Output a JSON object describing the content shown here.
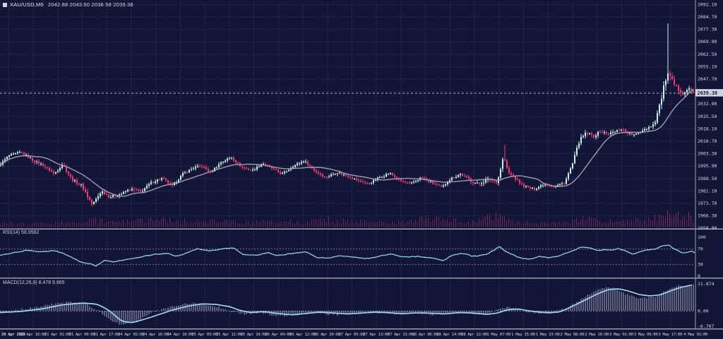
{
  "window": {
    "icon": "■",
    "symbol_period": "XAU/USD,M5",
    "ohlc": "2042.88 2043.50 2036.58 2039.38"
  },
  "colors": {
    "bg": "#131537",
    "grid": "#3b3f72",
    "bull": "#c9f4ee",
    "bear": "#ee3d77",
    "volume": "#8e2f63",
    "ma": "#a59bb0",
    "rsi_line": "#8ed2e6",
    "macd_signal": "#9fdef0",
    "macd_hist": "#c3c6e0",
    "separator": "#9a9dae",
    "axis_text": "#d5d7e6",
    "badge_bg": "#cfd2de",
    "badge_text": "#16183c",
    "price_line": "#aeb2c4",
    "level_dash": "#6a6e96"
  },
  "chart_data": {
    "type": "candlestick",
    "title": "XAU/USD,M5",
    "current_bar": {
      "open": 2042.88,
      "high": 2043.5,
      "low": 2036.58,
      "close": 2039.38
    },
    "current_price": "2039.38",
    "y_axis": {
      "top_value": 2092.1,
      "step": 7.4,
      "ticks": [
        "2092.10",
        "2084.70",
        "2077.30",
        "2069.90",
        "2062.50",
        "2055.10",
        "2047.70",
        "2040.30",
        "2032.90",
        "2025.50",
        "2018.10",
        "2010.70",
        "2003.30",
        "1995.90",
        "1988.50",
        "1981.10",
        "1973.70",
        "1966.30",
        "1958.90"
      ]
    },
    "x_axis": {
      "labels": [
        "20 Apr 2023",
        "20 Apr 16:00",
        "21 Apr 01:00",
        "21 Apr 09:00",
        "21 Apr 17:00",
        "24 Apr 02:00",
        "24 Apr 10:00",
        "24 Apr 18:00",
        "25 Apr 03:00",
        "25 Apr 11:00",
        "25 Apr 19:00",
        "26 Apr 04:00",
        "26 Apr 12:00",
        "26 Apr 20:00",
        "27 Apr 05:00",
        "27 Apr 13:00",
        "27 Apr 21:00",
        "28 Apr 06:00",
        "28 Apr 14:00",
        "28 Apr 22:00",
        "1 May 07:00",
        "1 May 15:00",
        "1 May 23:00",
        "2 May 08:00",
        "2 May 16:00",
        "3 May 01:00",
        "3 May 09:00",
        "3 May 17:00",
        "4 May 02:00"
      ]
    },
    "price_path": [
      [
        0,
        1996
      ],
      [
        0.015,
        2002
      ],
      [
        0.033,
        2004
      ],
      [
        0.05,
        1999
      ],
      [
        0.065,
        1996
      ],
      [
        0.08,
        1991
      ],
      [
        0.092,
        1997
      ],
      [
        0.105,
        1988
      ],
      [
        0.12,
        1984
      ],
      [
        0.135,
        1972.5
      ],
      [
        0.148,
        1981
      ],
      [
        0.16,
        1977.5
      ],
      [
        0.175,
        1979
      ],
      [
        0.19,
        1982
      ],
      [
        0.205,
        1980.5
      ],
      [
        0.22,
        1986
      ],
      [
        0.235,
        1988.5
      ],
      [
        0.25,
        1984
      ],
      [
        0.265,
        1991
      ],
      [
        0.28,
        1994.5
      ],
      [
        0.292,
        1996
      ],
      [
        0.305,
        1992
      ],
      [
        0.32,
        1998
      ],
      [
        0.335,
        2001
      ],
      [
        0.35,
        1995
      ],
      [
        0.365,
        1993
      ],
      [
        0.38,
        1997.5
      ],
      [
        0.395,
        1994
      ],
      [
        0.408,
        1991
      ],
      [
        0.425,
        1996
      ],
      [
        0.44,
        1999
      ],
      [
        0.455,
        1993
      ],
      [
        0.47,
        1989
      ],
      [
        0.487,
        1992
      ],
      [
        0.502,
        1990
      ],
      [
        0.518,
        1987
      ],
      [
        0.532,
        1985
      ],
      [
        0.548,
        1989
      ],
      [
        0.563,
        1991.5
      ],
      [
        0.578,
        1987
      ],
      [
        0.593,
        1985
      ],
      [
        0.608,
        1989
      ],
      [
        0.623,
        1986
      ],
      [
        0.638,
        1983
      ],
      [
        0.65,
        1988
      ],
      [
        0.665,
        1991
      ],
      [
        0.68,
        1987
      ],
      [
        0.69,
        1985
      ],
      [
        0.705,
        1988
      ],
      [
        0.718,
        1986.5
      ],
      [
        0.727,
        2002
      ],
      [
        0.733,
        1992
      ],
      [
        0.742,
        1989
      ],
      [
        0.755,
        1984
      ],
      [
        0.77,
        1982
      ],
      [
        0.785,
        1985
      ],
      [
        0.8,
        1983.5
      ],
      [
        0.815,
        1986
      ],
      [
        0.826,
        1997
      ],
      [
        0.836,
        2011
      ],
      [
        0.846,
        2015.5
      ],
      [
        0.856,
        2013.5
      ],
      [
        0.866,
        2016.5
      ],
      [
        0.876,
        2015
      ],
      [
        0.886,
        2016
      ],
      [
        0.896,
        2018
      ],
      [
        0.906,
        2015.5
      ],
      [
        0.916,
        2014
      ],
      [
        0.926,
        2017
      ],
      [
        0.936,
        2019
      ],
      [
        0.944,
        2021
      ],
      [
        0.954,
        2036
      ],
      [
        0.962,
        2051
      ],
      [
        0.968,
        2047
      ],
      [
        0.974,
        2043
      ],
      [
        0.98,
        2041
      ],
      [
        0.986,
        2039
      ],
      [
        0.993,
        2042
      ],
      [
        1,
        2039.4
      ]
    ],
    "volatility": [
      [
        0,
        1.2
      ],
      [
        0.1,
        1.4
      ],
      [
        0.13,
        2.2
      ],
      [
        0.16,
        1.4
      ],
      [
        0.3,
        1.2
      ],
      [
        0.5,
        1.1
      ],
      [
        0.65,
        1.2
      ],
      [
        0.72,
        2.0
      ],
      [
        0.74,
        1.2
      ],
      [
        0.8,
        1.0
      ],
      [
        0.83,
        2.0
      ],
      [
        0.87,
        1.4
      ],
      [
        0.94,
        1.6
      ],
      [
        0.955,
        3.5
      ],
      [
        0.965,
        3.5
      ],
      [
        0.98,
        2.0
      ],
      [
        1,
        1.8
      ]
    ],
    "spikes": [
      {
        "frac": 0.961,
        "high": 2080.8
      },
      {
        "frac": 0.727,
        "high": 2008.5
      }
    ],
    "volume_envelope": [
      [
        0,
        0.25
      ],
      [
        0.05,
        0.2
      ],
      [
        0.1,
        0.35
      ],
      [
        0.135,
        0.55
      ],
      [
        0.16,
        0.3
      ],
      [
        0.2,
        0.45
      ],
      [
        0.24,
        0.5
      ],
      [
        0.28,
        0.4
      ],
      [
        0.32,
        0.35
      ],
      [
        0.36,
        0.3
      ],
      [
        0.4,
        0.35
      ],
      [
        0.44,
        0.3
      ],
      [
        0.47,
        0.55
      ],
      [
        0.5,
        0.4
      ],
      [
        0.53,
        0.35
      ],
      [
        0.57,
        0.3
      ],
      [
        0.6,
        0.5
      ],
      [
        0.63,
        0.6
      ],
      [
        0.65,
        0.45
      ],
      [
        0.68,
        0.35
      ],
      [
        0.7,
        0.6
      ],
      [
        0.72,
        0.7
      ],
      [
        0.74,
        0.4
      ],
      [
        0.77,
        0.3
      ],
      [
        0.8,
        0.25
      ],
      [
        0.82,
        0.4
      ],
      [
        0.84,
        0.6
      ],
      [
        0.86,
        0.45
      ],
      [
        0.88,
        0.35
      ],
      [
        0.9,
        0.4
      ],
      [
        0.92,
        0.45
      ],
      [
        0.94,
        0.6
      ],
      [
        0.955,
        0.9
      ],
      [
        0.965,
        1.0
      ],
      [
        0.975,
        0.7
      ],
      [
        0.985,
        0.8
      ],
      [
        1,
        0.6
      ]
    ],
    "panes": {
      "rsi": {
        "label": "RSI(14) 58.9562",
        "value": 58.9562,
        "axis": [
          "100",
          "70",
          "30",
          "0"
        ],
        "levels": [
          70,
          30
        ],
        "path": [
          [
            0,
            52
          ],
          [
            0.02,
            60
          ],
          [
            0.04,
            66
          ],
          [
            0.06,
            62
          ],
          [
            0.08,
            65
          ],
          [
            0.095,
            55
          ],
          [
            0.105,
            45
          ],
          [
            0.12,
            33
          ],
          [
            0.13,
            31
          ],
          [
            0.138,
            25
          ],
          [
            0.15,
            40
          ],
          [
            0.165,
            36
          ],
          [
            0.18,
            42
          ],
          [
            0.2,
            47
          ],
          [
            0.22,
            55
          ],
          [
            0.24,
            58
          ],
          [
            0.255,
            50
          ],
          [
            0.27,
            60
          ],
          [
            0.285,
            70
          ],
          [
            0.3,
            64
          ],
          [
            0.315,
            68
          ],
          [
            0.335,
            72
          ],
          [
            0.35,
            55
          ],
          [
            0.37,
            52
          ],
          [
            0.385,
            60
          ],
          [
            0.4,
            52
          ],
          [
            0.42,
            58
          ],
          [
            0.44,
            62
          ],
          [
            0.455,
            48
          ],
          [
            0.47,
            45
          ],
          [
            0.49,
            52
          ],
          [
            0.51,
            48
          ],
          [
            0.53,
            44
          ],
          [
            0.55,
            52
          ],
          [
            0.565,
            56
          ],
          [
            0.58,
            48
          ],
          [
            0.6,
            50
          ],
          [
            0.62,
            46
          ],
          [
            0.638,
            40
          ],
          [
            0.65,
            52
          ],
          [
            0.665,
            58
          ],
          [
            0.68,
            50
          ],
          [
            0.7,
            55
          ],
          [
            0.718,
            75
          ],
          [
            0.73,
            60
          ],
          [
            0.745,
            48
          ],
          [
            0.76,
            42
          ],
          [
            0.775,
            50
          ],
          [
            0.79,
            46
          ],
          [
            0.805,
            52
          ],
          [
            0.82,
            62
          ],
          [
            0.836,
            74
          ],
          [
            0.85,
            72
          ],
          [
            0.86,
            64
          ],
          [
            0.87,
            68
          ],
          [
            0.88,
            66
          ],
          [
            0.89,
            70
          ],
          [
            0.9,
            64
          ],
          [
            0.91,
            56
          ],
          [
            0.92,
            62
          ],
          [
            0.93,
            66
          ],
          [
            0.94,
            68
          ],
          [
            0.954,
            78
          ],
          [
            0.962,
            80
          ],
          [
            0.97,
            68
          ],
          [
            0.978,
            62
          ],
          [
            0.985,
            58
          ],
          [
            0.993,
            64
          ],
          [
            1,
            59
          ]
        ]
      },
      "macd": {
        "label": "MACD(12,26,9) 8.478 9.865",
        "values": [
          8.478,
          9.865
        ],
        "axis": [
          "11.874",
          "0.00",
          "-6.707"
        ],
        "signal": [
          [
            0,
            -0.8
          ],
          [
            0.03,
            -0.3
          ],
          [
            0.06,
            0.8
          ],
          [
            0.09,
            2.6
          ],
          [
            0.12,
            3.4
          ],
          [
            0.14,
            2.8
          ],
          [
            0.155,
            0.5
          ],
          [
            0.165,
            -2
          ],
          [
            0.175,
            -4.6
          ],
          [
            0.19,
            -5.2
          ],
          [
            0.21,
            -3.5
          ],
          [
            0.23,
            -1.5
          ],
          [
            0.25,
            0.5
          ],
          [
            0.27,
            2
          ],
          [
            0.29,
            3
          ],
          [
            0.31,
            2.8
          ],
          [
            0.33,
            1.8
          ],
          [
            0.345,
            0.2
          ],
          [
            0.36,
            -0.8
          ],
          [
            0.38,
            -0.4
          ],
          [
            0.4,
            -1.2
          ],
          [
            0.42,
            -1.8
          ],
          [
            0.44,
            -1.2
          ],
          [
            0.46,
            -0.6
          ],
          [
            0.48,
            -1
          ],
          [
            0.5,
            -1.4
          ],
          [
            0.52,
            -1
          ],
          [
            0.54,
            -0.6
          ],
          [
            0.56,
            -0.9
          ],
          [
            0.58,
            -1.3
          ],
          [
            0.6,
            -0.9
          ],
          [
            0.62,
            -1.1
          ],
          [
            0.64,
            -1.4
          ],
          [
            0.66,
            -0.8
          ],
          [
            0.68,
            -1
          ],
          [
            0.7,
            -1.6
          ],
          [
            0.715,
            -1
          ],
          [
            0.73,
            0.4
          ],
          [
            0.745,
            0.8
          ],
          [
            0.76,
            0
          ],
          [
            0.775,
            -0.6
          ],
          [
            0.79,
            -0.9
          ],
          [
            0.805,
            -0.5
          ],
          [
            0.82,
            1.5
          ],
          [
            0.84,
            4.5
          ],
          [
            0.86,
            7.5
          ],
          [
            0.875,
            9.3
          ],
          [
            0.89,
            9.6
          ],
          [
            0.905,
            8.5
          ],
          [
            0.92,
            7
          ],
          [
            0.935,
            6.5
          ],
          [
            0.95,
            7
          ],
          [
            0.965,
            8.8
          ],
          [
            0.98,
            10.3
          ],
          [
            1,
            11.6
          ]
        ],
        "histogram": [
          [
            0,
            -1
          ],
          [
            0.02,
            0.3
          ],
          [
            0.05,
            1.5
          ],
          [
            0.08,
            3.2
          ],
          [
            0.105,
            3.8
          ],
          [
            0.125,
            2.5
          ],
          [
            0.14,
            0
          ],
          [
            0.15,
            -2.5
          ],
          [
            0.16,
            -4.5
          ],
          [
            0.175,
            -6
          ],
          [
            0.19,
            -5
          ],
          [
            0.205,
            -3
          ],
          [
            0.22,
            -0.5
          ],
          [
            0.24,
            1.5
          ],
          [
            0.26,
            2.8
          ],
          [
            0.28,
            3.4
          ],
          [
            0.3,
            2.6
          ],
          [
            0.32,
            1
          ],
          [
            0.335,
            -0.5
          ],
          [
            0.35,
            -1.5
          ],
          [
            0.37,
            -0.8
          ],
          [
            0.39,
            -1.8
          ],
          [
            0.41,
            -2.4
          ],
          [
            0.43,
            -1.4
          ],
          [
            0.45,
            -0.6
          ],
          [
            0.47,
            -1.4
          ],
          [
            0.49,
            -1.8
          ],
          [
            0.51,
            -1.2
          ],
          [
            0.53,
            -0.5
          ],
          [
            0.55,
            -1
          ],
          [
            0.57,
            -1.6
          ],
          [
            0.59,
            -1
          ],
          [
            0.61,
            -1.3
          ],
          [
            0.63,
            -1.8
          ],
          [
            0.65,
            -0.6
          ],
          [
            0.67,
            -1
          ],
          [
            0.69,
            -1.8
          ],
          [
            0.705,
            -1.2
          ],
          [
            0.72,
            1.2
          ],
          [
            0.735,
            1.5
          ],
          [
            0.75,
            0.2
          ],
          [
            0.765,
            -0.8
          ],
          [
            0.78,
            -1.2
          ],
          [
            0.795,
            -0.6
          ],
          [
            0.81,
            0.8
          ],
          [
            0.825,
            3
          ],
          [
            0.84,
            6
          ],
          [
            0.855,
            8.8
          ],
          [
            0.87,
            10
          ],
          [
            0.885,
            9.5
          ],
          [
            0.9,
            7.5
          ],
          [
            0.915,
            5.8
          ],
          [
            0.93,
            5.5
          ],
          [
            0.945,
            6.5
          ],
          [
            0.96,
            9
          ],
          [
            0.975,
            10.8
          ],
          [
            0.99,
            11.5
          ],
          [
            1,
            11.87
          ]
        ]
      }
    }
  }
}
